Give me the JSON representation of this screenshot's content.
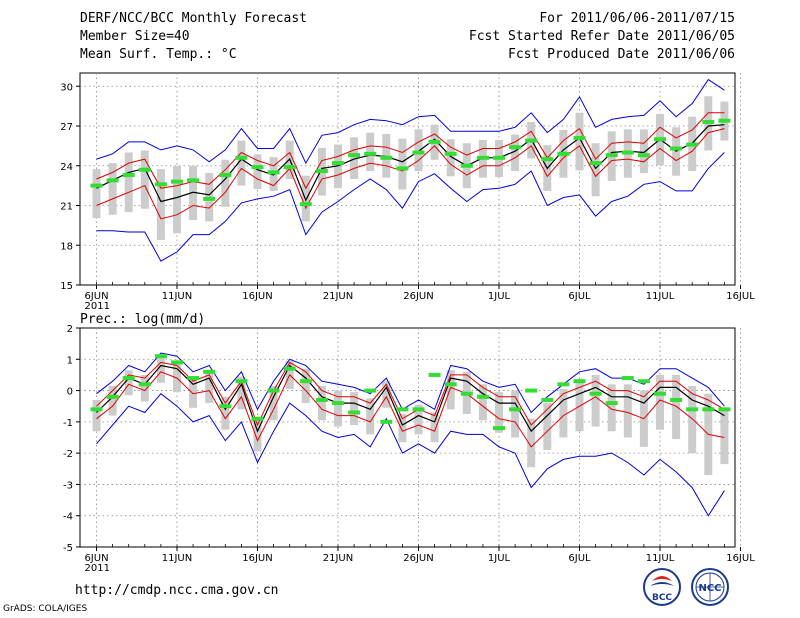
{
  "header": {
    "line1": "DERF/NCC/BCC Monthly Forecast",
    "line2": "Member Size=40",
    "line3": "Mean Surf. Temp.: °C",
    "right1": "For 2011/06/06-2011/07/15",
    "right2": "Fcst Started Refer Date 2011/06/05",
    "right3": "Fcst Produced Date 2011/06/06"
  },
  "url": "http://cmdp.ncc.cma.gov.cn",
  "credit": "GrADS: COLA/IGES",
  "logos": {
    "bcc": "BCC",
    "ncc": "NCC"
  },
  "colors": {
    "mean": "#000000",
    "spread": "#e00000",
    "envelope": "#0000dd",
    "box": "#cccccc",
    "obs": "#33dd33",
    "grid": "#888888"
  },
  "chart_data": [
    {
      "type": "line",
      "title": "Mean Surf. Temp.: °C",
      "ylim": [
        15,
        31
      ],
      "yticks": [
        15,
        18,
        21,
        24,
        27,
        30
      ],
      "x_label_ticks": [
        {
          "day": 0,
          "label": "6JUN",
          "sub": "2011"
        },
        {
          "day": 5,
          "label": "11JUN"
        },
        {
          "day": 10,
          "label": "16JUN"
        },
        {
          "day": 15,
          "label": "21JUN"
        },
        {
          "day": 20,
          "label": "26JUN"
        },
        {
          "day": 25,
          "label": "1JUL"
        },
        {
          "day": 30,
          "label": "6JUL"
        },
        {
          "day": 35,
          "label": "11JUL"
        },
        {
          "day": 40,
          "label": "16JUL"
        }
      ],
      "grid": true,
      "series": [
        {
          "name": "ensemble-mean",
          "values": [
            22.3,
            22.9,
            23.5,
            23.8,
            21.3,
            21.6,
            22.0,
            21.8,
            23.0,
            24.5,
            23.7,
            23.3,
            24.5,
            21.4,
            23.8,
            24.0,
            24.5,
            24.8,
            24.7,
            24.3,
            25.1,
            26.0,
            24.7,
            24.0,
            24.6,
            24.6,
            25.1,
            26.0,
            23.8,
            25.2,
            26.1,
            23.8,
            25.0,
            25.1,
            25.0,
            26.0,
            25.1,
            25.7,
            27.0,
            27.1
          ]
        },
        {
          "name": "upper-spread",
          "values": [
            23.0,
            23.5,
            24.2,
            24.5,
            22.3,
            22.5,
            22.8,
            22.6,
            23.7,
            25.0,
            24.4,
            24.0,
            25.0,
            22.3,
            24.4,
            24.7,
            25.2,
            25.5,
            25.4,
            25.0,
            25.8,
            26.4,
            25.4,
            24.8,
            25.3,
            25.3,
            25.8,
            26.6,
            24.6,
            25.9,
            26.8,
            24.5,
            25.7,
            25.8,
            25.7,
            26.9,
            26.1,
            26.7,
            28.0,
            28.0
          ]
        },
        {
          "name": "lower-spread",
          "values": [
            21.0,
            21.5,
            22.0,
            22.5,
            20.0,
            20.3,
            21.0,
            20.8,
            22.0,
            23.8,
            23.0,
            22.5,
            23.8,
            20.8,
            23.0,
            23.3,
            23.8,
            24.2,
            24.0,
            23.6,
            24.4,
            25.5,
            24.1,
            23.3,
            24.0,
            24.0,
            24.6,
            25.5,
            23.2,
            24.6,
            25.5,
            23.2,
            24.4,
            24.5,
            24.3,
            25.3,
            24.4,
            25.1,
            26.5,
            26.8
          ]
        },
        {
          "name": "max-envelope",
          "values": [
            24.5,
            24.9,
            25.8,
            25.8,
            25.2,
            25.5,
            25.2,
            24.3,
            25.2,
            26.8,
            25.3,
            25.3,
            26.8,
            24.2,
            26.3,
            26.5,
            27.1,
            27.5,
            27.4,
            27.1,
            27.7,
            27.8,
            26.6,
            26.6,
            26.6,
            26.6,
            26.9,
            28.0,
            26.5,
            27.5,
            29.2,
            26.9,
            27.5,
            27.7,
            27.8,
            28.9,
            27.7,
            28.7,
            30.5,
            29.7
          ]
        },
        {
          "name": "min-envelope",
          "values": [
            19.1,
            19.1,
            19.0,
            19.0,
            16.8,
            17.5,
            18.8,
            18.8,
            19.8,
            21.2,
            21.5,
            21.7,
            22.2,
            18.8,
            20.5,
            21.3,
            22.2,
            23.0,
            22.2,
            20.8,
            22.8,
            23.4,
            22.3,
            21.3,
            22.2,
            22.3,
            22.6,
            23.6,
            21.0,
            21.6,
            21.8,
            20.2,
            21.3,
            21.7,
            22.6,
            22.8,
            22.1,
            22.1,
            23.8,
            25.0
          ]
        },
        {
          "name": "observed",
          "values": [
            22.5,
            22.9,
            23.3,
            23.7,
            22.6,
            22.8,
            22.9,
            21.5,
            23.3,
            24.6,
            23.9,
            23.5,
            23.9,
            21.1,
            23.6,
            24.2,
            24.8,
            24.9,
            24.6,
            23.8,
            25.0,
            25.8,
            24.9,
            24.0,
            24.6,
            24.6,
            25.4,
            25.9,
            24.5,
            24.9,
            26.1,
            24.2,
            24.8,
            25.0,
            24.8,
            26.0,
            25.3,
            25.6,
            27.3,
            27.4
          ]
        }
      ]
    },
    {
      "type": "line",
      "title": "Prec.: log(mm/d)",
      "ylim": [
        -5,
        2
      ],
      "yticks": [
        -5,
        -4,
        -3,
        -2,
        -1,
        0,
        1,
        2
      ],
      "x_label_ticks": [
        {
          "day": 0,
          "label": "6JUN",
          "sub": "2011"
        },
        {
          "day": 5,
          "label": "11JUN"
        },
        {
          "day": 10,
          "label": "16JUN"
        },
        {
          "day": 15,
          "label": "21JUN"
        },
        {
          "day": 20,
          "label": "26JUN"
        },
        {
          "day": 25,
          "label": "1JUL"
        },
        {
          "day": 30,
          "label": "6JUL"
        },
        {
          "day": 35,
          "label": "11JUL"
        },
        {
          "day": 40,
          "label": "16JUL"
        }
      ],
      "grid": true,
      "series": [
        {
          "name": "ensemble-mean",
          "values": [
            -0.7,
            -0.2,
            0.4,
            0.2,
            0.8,
            0.7,
            0.2,
            0.4,
            -0.6,
            0.2,
            -1.3,
            -0.2,
            0.8,
            0.4,
            -0.2,
            -0.4,
            -0.4,
            -0.6,
            0.1,
            -1.1,
            -0.8,
            -1.0,
            0.4,
            0.3,
            -0.1,
            -0.4,
            -0.4,
            -1.3,
            -0.8,
            -0.3,
            -0.1,
            0.1,
            -0.2,
            -0.2,
            -0.4,
            0.1,
            0.1,
            -0.3,
            -0.5,
            -0.8
          ]
        },
        {
          "name": "upper-spread",
          "values": [
            -0.5,
            0.0,
            0.5,
            0.4,
            0.9,
            0.8,
            0.3,
            0.5,
            -0.4,
            0.3,
            -1.1,
            0.0,
            0.9,
            0.6,
            0.0,
            -0.2,
            -0.2,
            -0.4,
            0.2,
            -0.9,
            -0.6,
            -0.8,
            0.5,
            0.5,
            0.1,
            -0.2,
            -0.2,
            -1.1,
            -0.6,
            -0.1,
            0.1,
            0.3,
            0.0,
            0.0,
            -0.2,
            0.3,
            0.3,
            -0.1,
            -0.3,
            -0.6
          ]
        },
        {
          "name": "lower-spread",
          "values": [
            -0.9,
            -0.5,
            0.2,
            0.0,
            0.6,
            0.4,
            -0.1,
            0.0,
            -0.9,
            -0.2,
            -1.6,
            -0.6,
            0.5,
            0.0,
            -0.6,
            -0.8,
            -0.8,
            -1.0,
            -0.2,
            -1.3,
            -1.1,
            -1.3,
            0.1,
            -0.1,
            -0.5,
            -0.9,
            -1.0,
            -1.8,
            -1.3,
            -0.8,
            -0.5,
            -0.2,
            -0.6,
            -0.7,
            -0.9,
            -0.3,
            -0.5,
            -0.9,
            -1.4,
            -1.5
          ]
        },
        {
          "name": "max-envelope",
          "values": [
            -0.1,
            0.3,
            0.8,
            0.6,
            1.2,
            1.1,
            0.6,
            0.8,
            0.0,
            0.6,
            -0.6,
            0.3,
            1.0,
            0.8,
            0.3,
            0.2,
            0.1,
            -0.1,
            0.4,
            -0.6,
            -0.3,
            -0.6,
            0.8,
            0.7,
            0.3,
            0.1,
            0.2,
            -0.7,
            -0.2,
            0.2,
            0.6,
            0.7,
            0.4,
            0.4,
            0.2,
            0.7,
            0.7,
            0.4,
            0.1,
            -0.5
          ]
        },
        {
          "name": "min-envelope",
          "values": [
            -1.7,
            -1.1,
            -0.5,
            -0.7,
            -0.1,
            -0.5,
            -1.0,
            -0.8,
            -1.6,
            -1.0,
            -2.3,
            -1.3,
            -0.4,
            -0.8,
            -1.3,
            -1.5,
            -1.4,
            -1.8,
            -0.9,
            -2.0,
            -1.7,
            -2.0,
            -1.3,
            -1.4,
            -1.4,
            -1.8,
            -2.0,
            -3.1,
            -2.5,
            -2.2,
            -2.1,
            -2.1,
            -2.0,
            -2.3,
            -2.7,
            -2.2,
            -2.6,
            -3.1,
            -4.0,
            -3.2
          ]
        },
        {
          "name": "observed",
          "values": [
            -0.6,
            -0.2,
            0.4,
            0.2,
            1.1,
            0.9,
            0.4,
            0.6,
            -0.5,
            0.3,
            -0.9,
            0.0,
            0.7,
            0.3,
            -0.3,
            -0.4,
            -0.7,
            0.0,
            -1.0,
            -0.6,
            -0.6,
            0.5,
            0.2,
            -0.1,
            -0.2,
            -1.2,
            -0.6,
            0.0,
            -0.3,
            0.2,
            0.3,
            -0.1,
            -0.4,
            0.4,
            0.3,
            -0.1,
            -0.3,
            -0.6,
            -0.6,
            -0.6
          ]
        }
      ]
    }
  ]
}
